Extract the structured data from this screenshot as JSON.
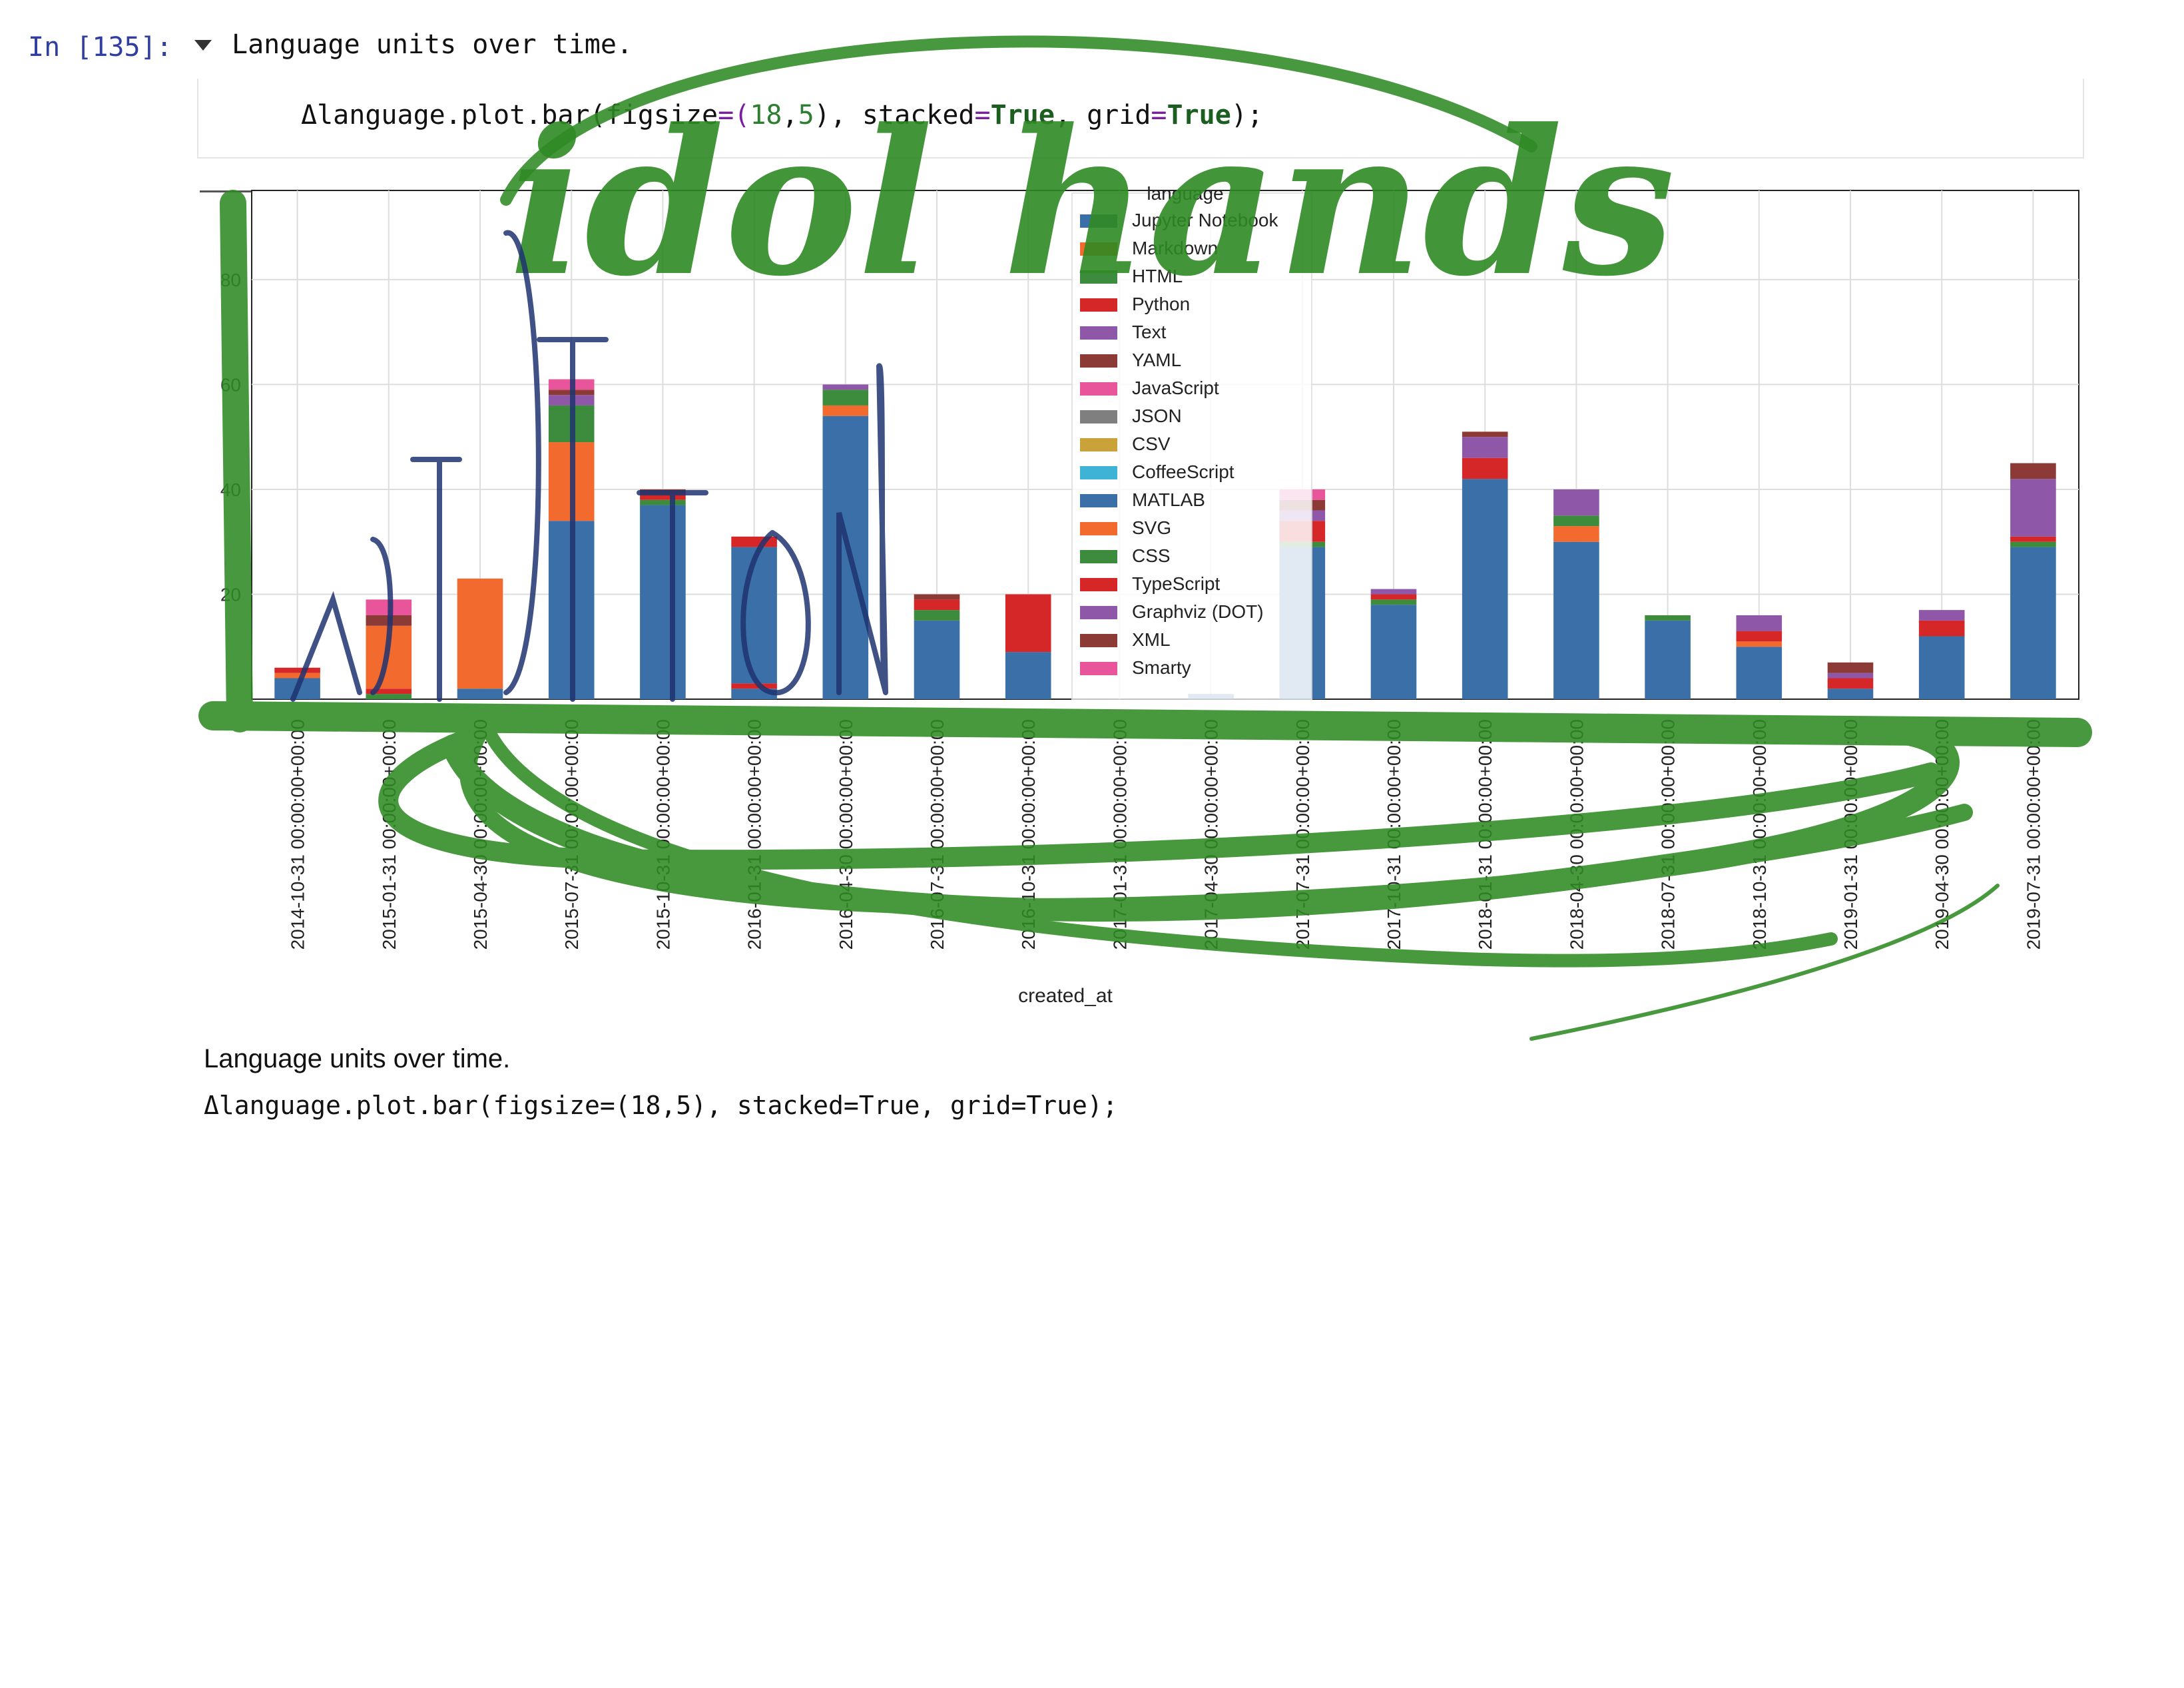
{
  "cell": {
    "prompt": "In [135]:",
    "description": "Language units over time.",
    "code": {
      "part1": "Δlanguage.plot.bar(",
      "part2": "figsize",
      "part3": "=(",
      "part4": "18",
      "part5": ",",
      "part6": "5",
      "part7": "), stacked",
      "part8": "=",
      "part9": "True",
      "part10": ", grid",
      "part11": "=",
      "part12": "True",
      "part13": ");"
    }
  },
  "output": {
    "description": "Language units over time.",
    "code": "Δlanguage.plot.bar(figsize=(18,5), stacked=True, grid=True);"
  },
  "overlay": {
    "lettering": "idol hands"
  },
  "chart_data": {
    "type": "bar",
    "stacked": true,
    "grid": true,
    "xlabel": "created_at",
    "ylabel": "",
    "ylim": [
      0,
      97
    ],
    "yticks": [
      20,
      40,
      60,
      80
    ],
    "legend_title": "language",
    "legend_position": "upper-center",
    "categories": [
      "2014-10-31 00:00:00+00:00",
      "2015-01-31 00:00:00+00:00",
      "2015-04-30 00:00:00+00:00",
      "2015-07-31 00:00:00+00:00",
      "2015-10-31 00:00:00+00:00",
      "2016-01-31 00:00:00+00:00",
      "2016-04-30 00:00:00+00:00",
      "2016-07-31 00:00:00+00:00",
      "2016-10-31 00:00:00+00:00",
      "2017-01-31 00:00:00+00:00",
      "2017-04-30 00:00:00+00:00",
      "2017-07-31 00:00:00+00:00",
      "2017-10-31 00:00:00+00:00",
      "2018-01-31 00:00:00+00:00",
      "2018-04-30 00:00:00+00:00",
      "2018-07-31 00:00:00+00:00",
      "2018-10-31 00:00:00+00:00",
      "2019-01-31 00:00:00+00:00",
      "2019-04-30 00:00:00+00:00",
      "2019-07-31 00:00:00+00:00"
    ],
    "series": [
      {
        "name": "Jupyter Notebook",
        "color": "#3A6FA8",
        "values": [
          4,
          0,
          2,
          0,
          0,
          2,
          0,
          0,
          0,
          0,
          0,
          0,
          0,
          0,
          0,
          0,
          0,
          0,
          0,
          0
        ]
      },
      {
        "name": "Markdown",
        "color": "#F26A2E",
        "values": [
          1,
          0,
          0,
          0,
          0,
          0,
          0,
          0,
          0,
          0,
          0,
          0,
          0,
          0,
          0,
          0,
          0,
          0,
          0,
          0
        ]
      },
      {
        "name": "HTML",
        "color": "#3D8B3D",
        "values": [
          0,
          1,
          0,
          0,
          0,
          0,
          0,
          0,
          0,
          0,
          0,
          0,
          0,
          0,
          0,
          0,
          0,
          0,
          0,
          0
        ]
      },
      {
        "name": "Python",
        "color": "#D62728",
        "values": [
          1,
          1,
          0,
          0,
          0,
          1,
          0,
          0,
          0,
          0,
          0,
          0,
          0,
          0,
          0,
          0,
          0,
          0,
          0,
          0
        ]
      },
      {
        "name": "Text",
        "color": "#8E57A8",
        "values": [
          0,
          0,
          0,
          0,
          0,
          0,
          0,
          0,
          0,
          0,
          0,
          0,
          0,
          0,
          0,
          0,
          0,
          0,
          0,
          0
        ]
      },
      {
        "name": "YAML",
        "color": "#8C3A36",
        "values": [
          0,
          0,
          0,
          0,
          0,
          0,
          0,
          0,
          0,
          0,
          0,
          0,
          0,
          0,
          0,
          0,
          0,
          0,
          0,
          0
        ]
      },
      {
        "name": "JavaScript",
        "color": "#E8559A",
        "values": [
          0,
          0,
          0,
          0,
          0,
          0,
          0,
          0,
          0,
          0,
          0,
          0,
          0,
          0,
          0,
          0,
          0,
          0,
          0,
          0
        ]
      },
      {
        "name": "JSON",
        "color": "#7F7F7F",
        "values": [
          0,
          0,
          0,
          0,
          0,
          0,
          0,
          0,
          0,
          0,
          0,
          0,
          0,
          0,
          0,
          0,
          0,
          0,
          0,
          0
        ]
      },
      {
        "name": "CSV",
        "color": "#C9A23A",
        "values": [
          0,
          0,
          0,
          0,
          0,
          0,
          0,
          0,
          0,
          0,
          0,
          0,
          0,
          0,
          0,
          0,
          0,
          0,
          0,
          0
        ]
      },
      {
        "name": "CoffeeScript",
        "color": "#3EB3D6",
        "values": [
          0,
          0,
          0,
          0,
          0,
          0,
          0,
          0,
          0,
          0,
          0,
          0,
          0,
          0,
          0,
          0,
          0,
          0,
          0,
          0
        ]
      },
      {
        "name": "MATLAB",
        "color": "#3A6FA8",
        "values": [
          0,
          0,
          0,
          34,
          37,
          26,
          54,
          15,
          9,
          0,
          1,
          29,
          18,
          42,
          30,
          15,
          10,
          2,
          12,
          29
        ]
      },
      {
        "name": "SVG",
        "color": "#F26A2E",
        "values": [
          0,
          12,
          21,
          15,
          0,
          0,
          2,
          0,
          0,
          0,
          0,
          0,
          0,
          0,
          3,
          0,
          1,
          0,
          0,
          0
        ]
      },
      {
        "name": "CSS",
        "color": "#3D8B3D",
        "values": [
          0,
          0,
          0,
          7,
          1,
          0,
          3,
          2,
          0,
          0,
          0,
          1,
          1,
          0,
          2,
          1,
          0,
          0,
          0,
          1
        ]
      },
      {
        "name": "TypeScript",
        "color": "#D62728",
        "values": [
          0,
          0,
          0,
          0,
          1,
          2,
          0,
          2,
          11,
          0,
          0,
          4,
          1,
          4,
          0,
          0,
          2,
          2,
          3,
          1
        ]
      },
      {
        "name": "Graphviz (DOT)",
        "color": "#8E57A8",
        "values": [
          0,
          0,
          0,
          2,
          0,
          0,
          1,
          0,
          0,
          0,
          0,
          2,
          1,
          4,
          5,
          0,
          3,
          1,
          2,
          11
        ]
      },
      {
        "name": "XML",
        "color": "#8C3A36",
        "values": [
          0,
          2,
          0,
          1,
          1,
          0,
          0,
          1,
          0,
          0,
          0,
          2,
          0,
          1,
          0,
          0,
          0,
          2,
          0,
          3
        ]
      },
      {
        "name": "Smarty",
        "color": "#E8559A",
        "values": [
          0,
          3,
          0,
          2,
          0,
          0,
          0,
          0,
          0,
          0,
          0,
          2,
          0,
          0,
          0,
          0,
          0,
          0,
          0,
          0
        ]
      }
    ]
  }
}
